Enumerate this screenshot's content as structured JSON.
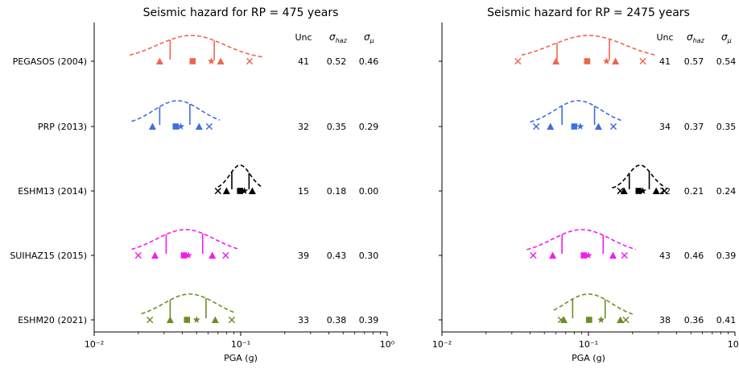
{
  "colors": {
    "PEGASOS (2004)": "#f0654e",
    "PRP (2013)": "#3f6ee0",
    "ESHM13 (2014)": "#000000",
    "SUIHAZ15 (2015)": "#f21bf2",
    "ESHM20 (2021)": "#6b8e23"
  },
  "legend_header": [
    "Unc",
    "σ_haz",
    "σ_μ"
  ],
  "chart_data": [
    {
      "type": "scatter",
      "title": "Seismic hazard for RP = 475 years",
      "xlabel": "PGA (g)",
      "xscale": "log",
      "xlim": [
        0.01,
        1.0
      ],
      "xticks": [
        {
          "value": 0.01,
          "label": "10⁻²"
        },
        {
          "value": 0.1,
          "label": "10⁻¹"
        },
        {
          "value": 1.0,
          "label": "10⁰"
        }
      ],
      "models": [
        {
          "name": "PEGASOS (2004)",
          "unc": "41",
          "sigma_haz": "0.52",
          "sigma_mu": "0.46",
          "median": 0.046,
          "p16": 0.033,
          "p84": 0.066,
          "curve": [
            0.0175,
            0.14
          ],
          "width": 0.23,
          "markers": {
            "cross": 0.115,
            "triangles": [
              0.028,
              0.073
            ],
            "square": 0.047,
            "star": 0.063
          }
        },
        {
          "name": "PRP (2013)",
          "unc": "32",
          "sigma_haz": "0.35",
          "sigma_mu": "0.29",
          "median": 0.037,
          "p16": 0.028,
          "p84": 0.045,
          "curve": [
            0.018,
            0.072
          ],
          "width": 0.16,
          "markers": {
            "cross": 0.061,
            "triangles": [
              0.025,
              0.052
            ],
            "square": 0.036,
            "star": 0.039
          }
        },
        {
          "name": "ESHM13 (2014)",
          "unc": "15",
          "sigma_haz": "0.18",
          "sigma_mu": "0.00",
          "median": 0.099,
          "p16": 0.087,
          "p84": 0.114,
          "curve": [
            0.07,
            0.138
          ],
          "width": 0.07,
          "markers": {
            "cross": 0.07,
            "triangles": [
              0.08,
              0.12
            ],
            "square": 0.099,
            "star": 0.106
          }
        },
        {
          "name": "SUIHAZ15 (2015)",
          "unc": "39",
          "sigma_haz": "0.43",
          "sigma_mu": "0.30",
          "median": 0.042,
          "p16": 0.031,
          "p84": 0.055,
          "curve": [
            0.018,
            0.098
          ],
          "width": 0.2,
          "markers": {
            "cross": 0.02,
            "triangles": [
              0.026,
              0.064
            ],
            "square": 0.041,
            "star": 0.044,
            "cross2": 0.079
          }
        },
        {
          "name": "ESHM20 (2021)",
          "unc": "33",
          "sigma_haz": "0.38",
          "sigma_mu": "0.39",
          "median": 0.045,
          "p16": 0.033,
          "p84": 0.058,
          "curve": [
            0.021,
            0.093
          ],
          "width": 0.18,
          "markers": {
            "cross": 0.024,
            "triangles": [
              0.033,
              0.067
            ],
            "square": 0.043,
            "star": 0.05,
            "cross2": 0.087
          }
        }
      ]
    },
    {
      "type": "scatter",
      "title": "Seismic hazard for RP = 2475 years",
      "xlabel": "PGA (g)",
      "xscale": "log",
      "xlim": [
        0.01,
        1.0
      ],
      "xticks": [
        {
          "value": 0.01,
          "label": "10⁻²"
        },
        {
          "value": 0.1,
          "label": "10⁻¹"
        },
        {
          "value": 1.0,
          "label": "10⁰"
        }
      ],
      "models": [
        {
          "name": "PEGASOS (2004)",
          "unc": "41",
          "sigma_haz": "0.57",
          "sigma_mu": "0.54",
          "median": 0.1,
          "p16": 0.061,
          "p84": 0.139,
          "curve": [
            0.035,
            0.285
          ],
          "width": 0.25,
          "markers": {
            "cross": 0.033,
            "triangles": [
              0.06,
              0.153
            ],
            "square": 0.098,
            "star": 0.133,
            "cross2": 0.235
          }
        },
        {
          "name": "PRP (2013)",
          "unc": "34",
          "sigma_haz": "0.37",
          "sigma_mu": "0.35",
          "median": 0.085,
          "p16": 0.066,
          "p84": 0.11,
          "curve": [
            0.04,
            0.17
          ],
          "width": 0.16,
          "markers": {
            "cross": 0.044,
            "triangles": [
              0.055,
              0.117
            ],
            "square": 0.08,
            "star": 0.088,
            "cross2": 0.148
          }
        },
        {
          "name": "ESHM13 (2014)",
          "unc": "22",
          "sigma_haz": "0.21",
          "sigma_mu": "0.24",
          "median": 0.225,
          "p16": 0.19,
          "p84": 0.26,
          "curve": [
            0.145,
            0.335
          ],
          "width": 0.08,
          "markers": {
            "cross": 0.33,
            "triangles": [
              0.175,
              0.29
            ],
            "square": 0.22,
            "star": 0.235,
            "cross2": 0.165
          }
        },
        {
          "name": "SUIHAZ15 (2015)",
          "unc": "43",
          "sigma_haz": "0.46",
          "sigma_mu": "0.39",
          "median": 0.09,
          "p16": 0.066,
          "p84": 0.126,
          "curve": [
            0.038,
            0.21
          ],
          "width": 0.2,
          "markers": {
            "cross": 0.042,
            "triangles": [
              0.057,
              0.147
            ],
            "square": 0.093,
            "star": 0.1,
            "cross2": 0.176
          }
        },
        {
          "name": "ESHM20 (2021)",
          "unc": "38",
          "sigma_haz": "0.36",
          "sigma_mu": "0.41",
          "median": 0.1,
          "p16": 0.078,
          "p84": 0.13,
          "curve": [
            0.058,
            0.2
          ],
          "width": 0.16,
          "markers": {
            "cross": 0.065,
            "triangles": [
              0.068,
              0.165
            ],
            "square": 0.101,
            "star": 0.122,
            "cross2": 0.18
          }
        }
      ]
    }
  ]
}
